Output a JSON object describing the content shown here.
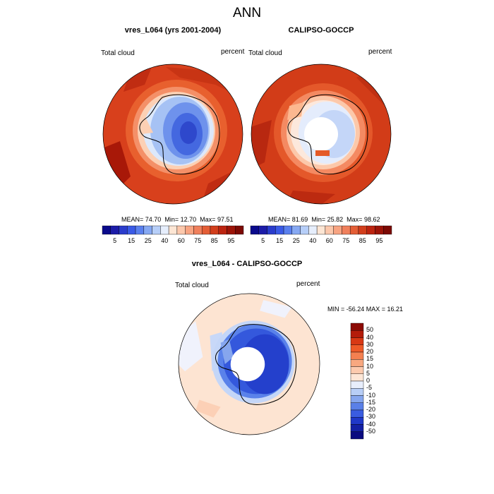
{
  "figure": {
    "title": "ANN"
  },
  "panels": [
    {
      "title": "vres_L064 (yrs 2001-2004)",
      "left_label": "Total cloud",
      "right_label": "percent",
      "stats": {
        "mean_label": "MEAN=",
        "mean": "74.70",
        "min_label": "Min=",
        "min": "12.70",
        "max_label": "Max=",
        "max": "97.51"
      }
    },
    {
      "title": "CALIPSO-GOCCP",
      "left_label": "Total cloud",
      "right_label": "percent",
      "stats": {
        "mean_label": "MEAN=",
        "mean": "81.69",
        "min_label": "Min=",
        "min": "25.82",
        "max_label": "Max=",
        "max": "98.62"
      }
    }
  ],
  "diff_panel": {
    "title": "vres_L064 - CALIPSO-GOCCP",
    "left_label": "Total cloud",
    "right_label": "percent",
    "minmax": "MIN = -56.24 MAX =  16.21"
  },
  "colorbar_abs": {
    "ticks": [
      "5",
      "15",
      "25",
      "40",
      "60",
      "75",
      "85",
      "95"
    ],
    "colors": [
      "#0a0a8c",
      "#1c1ca8",
      "#2a3ccc",
      "#3a5ae6",
      "#5a80ee",
      "#86a8f2",
      "#b6cef8",
      "#e6eefc",
      "#fde6d4",
      "#fcc8ac",
      "#f8a482",
      "#f0805c",
      "#e45e36",
      "#d23e1c",
      "#bc2410",
      "#9c1408",
      "#7c0a04"
    ]
  },
  "colorbar_diff": {
    "ticks": [
      "50",
      "40",
      "30",
      "20",
      "15",
      "10",
      "5",
      "0",
      "-5",
      "-10",
      "-15",
      "-20",
      "-30",
      "-40",
      "-50"
    ],
    "colors": [
      "#8c0a04",
      "#b41c0a",
      "#d83814",
      "#ee5a28",
      "#f48050",
      "#f8a880",
      "#fccaae",
      "#fde6d6",
      "#e8eefc",
      "#b8cef6",
      "#86a6ee",
      "#5a80e8",
      "#3a5ce0",
      "#2038c8",
      "#1420a4",
      "#0a0a80"
    ]
  }
}
